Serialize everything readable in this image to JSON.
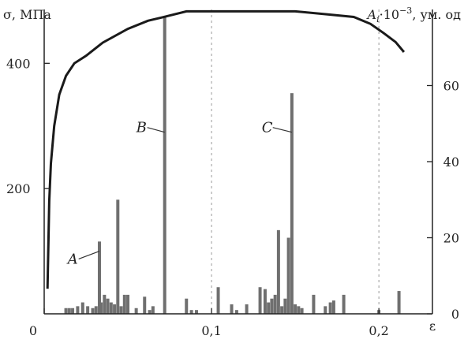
{
  "chart_data": {
    "type": "bar+line",
    "title": "",
    "x": {
      "label": "ε",
      "lim": [
        0,
        0.232
      ],
      "ticks": [
        0,
        0.1,
        0.2
      ],
      "tick_labels": [
        "0",
        "0,1",
        "0,2"
      ]
    },
    "y_left": {
      "label": "σ, МПа",
      "lim": [
        0,
        486
      ],
      "ticks": [
        200,
        400
      ],
      "tick_labels": [
        "200",
        "400"
      ]
    },
    "y_right": {
      "label": "A_i·10^-3, ум. од",
      "label_parts": {
        "base": "A",
        "sub": "i",
        "mid": "·10",
        "sup": "−3",
        "tail": ", ум. од"
      },
      "lim": [
        0,
        80
      ],
      "ticks": [
        0,
        20,
        40,
        60
      ],
      "tick_labels": [
        "0",
        "20",
        "40",
        "60"
      ]
    },
    "grid": "vertical-dashed",
    "line_series": {
      "axis": "left",
      "points": [
        [
          0.002,
          40
        ],
        [
          0.003,
          180
        ],
        [
          0.004,
          240
        ],
        [
          0.006,
          300
        ],
        [
          0.009,
          350
        ],
        [
          0.013,
          380
        ],
        [
          0.018,
          400
        ],
        [
          0.025,
          412
        ],
        [
          0.035,
          433
        ],
        [
          0.05,
          455
        ],
        [
          0.062,
          468
        ],
        [
          0.07,
          473
        ],
        [
          0.085,
          483
        ],
        [
          0.1,
          483
        ],
        [
          0.13,
          483
        ],
        [
          0.15,
          483
        ],
        [
          0.17,
          478
        ],
        [
          0.185,
          474
        ],
        [
          0.195,
          463
        ],
        [
          0.203,
          448
        ],
        [
          0.21,
          434
        ],
        [
          0.215,
          418
        ]
      ]
    },
    "bar_series": {
      "axis": "right",
      "x": [
        0.013,
        0.015,
        0.017,
        0.02,
        0.023,
        0.026,
        0.029,
        0.031,
        0.033,
        0.034,
        0.036,
        0.038,
        0.04,
        0.042,
        0.044,
        0.046,
        0.048,
        0.05,
        0.055,
        0.06,
        0.063,
        0.065,
        0.072,
        0.085,
        0.088,
        0.091,
        0.104,
        0.112,
        0.115,
        0.121,
        0.129,
        0.132,
        0.134,
        0.136,
        0.138,
        0.14,
        0.142,
        0.144,
        0.146,
        0.148,
        0.15,
        0.152,
        0.154,
        0.161,
        0.168,
        0.171,
        0.173,
        0.179,
        0.2,
        0.212
      ],
      "values": [
        1.5,
        1.5,
        1.5,
        2,
        3,
        2,
        1.5,
        2,
        19,
        3,
        5,
        4,
        3,
        2.5,
        30,
        2,
        5,
        5,
        1.5,
        4.5,
        1,
        2,
        78,
        4,
        1,
        1,
        7,
        2.5,
        1,
        2.5,
        7,
        6.5,
        3,
        4,
        5,
        22,
        2,
        4,
        20,
        58,
        2.5,
        2,
        1.5,
        5,
        2,
        3,
        3.5,
        5,
        1,
        6
      ]
    },
    "annotations": [
      {
        "label": "A",
        "x": 0.014,
        "y_left": 80,
        "target_x": 0.033,
        "target_y_left": 100
      },
      {
        "label": "B",
        "x": 0.055,
        "y_left": 290,
        "target_x": 0.072,
        "target_y_left": 290
      },
      {
        "label": "C",
        "x": 0.13,
        "y_left": 290,
        "target_x": 0.148,
        "target_y_left": 290
      }
    ]
  }
}
